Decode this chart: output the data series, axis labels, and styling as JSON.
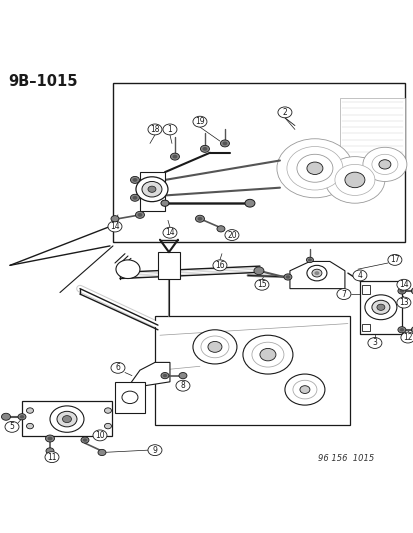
{
  "title": "9B–1015",
  "watermark": "96 156  1015",
  "bg_color": "#ffffff",
  "fg_color": "#000000",
  "figsize": [
    4.14,
    5.33
  ],
  "dpi": 100,
  "title_fontsize": 10.5,
  "watermark_fontsize": 6
}
